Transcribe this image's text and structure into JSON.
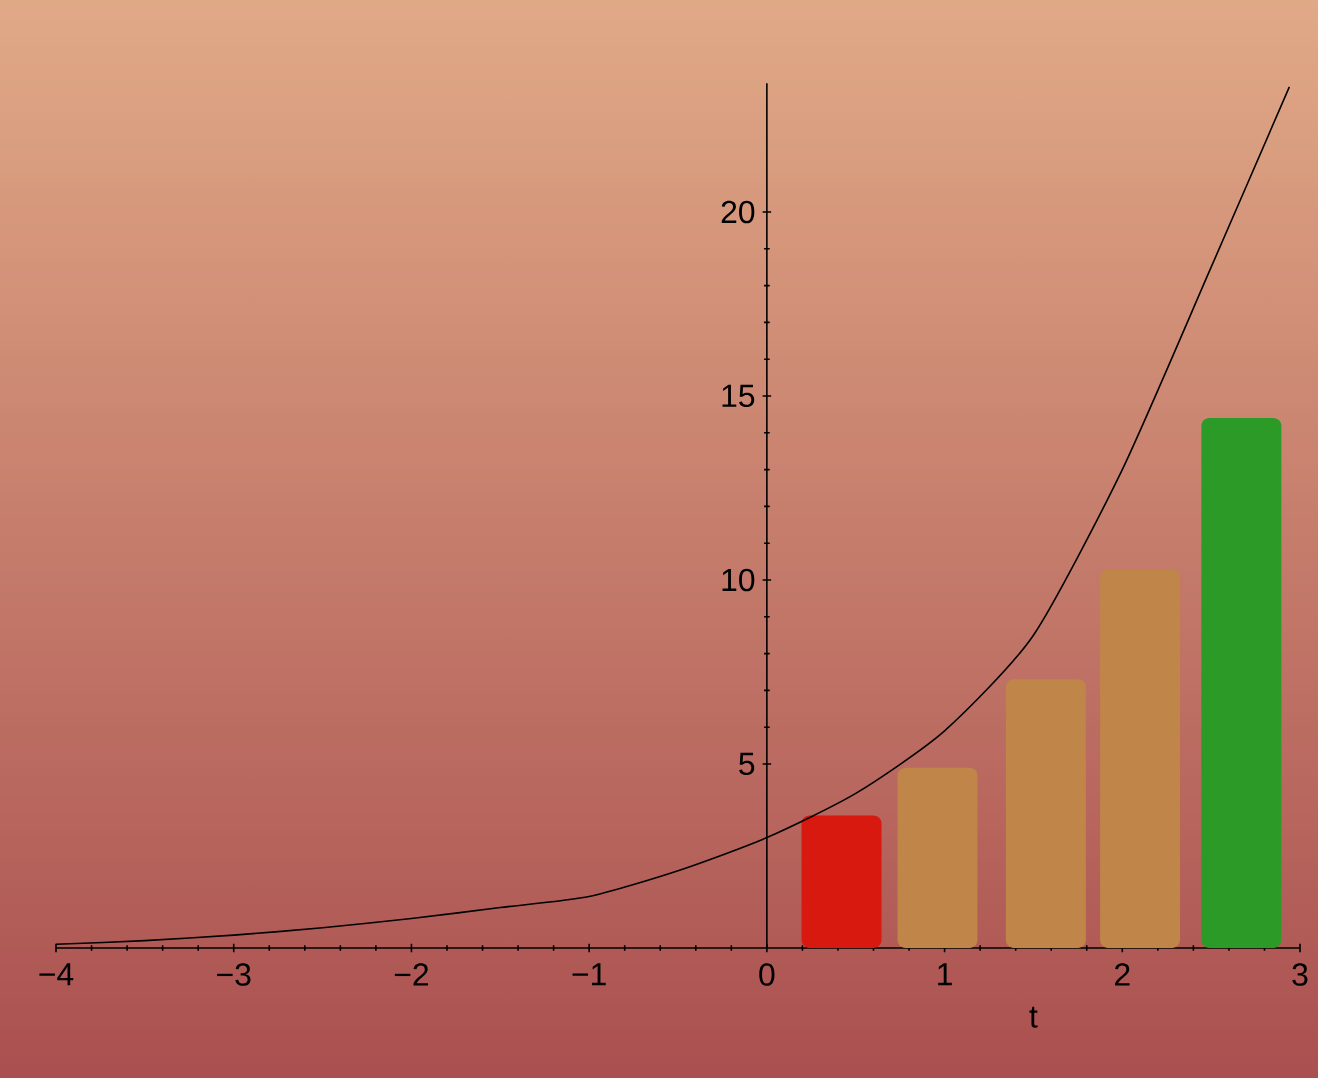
{
  "chart_data": {
    "type": "bar",
    "xlabel": "t",
    "xlim": [
      -4,
      3
    ],
    "ylim": [
      0,
      23.5
    ],
    "xticks": [
      {
        "value": -4,
        "label": "−4"
      },
      {
        "value": -3,
        "label": "−3"
      },
      {
        "value": -2,
        "label": "−2"
      },
      {
        "value": -1,
        "label": "−1"
      },
      0,
      1,
      2,
      3
    ],
    "yticks": [
      5,
      10,
      15,
      20
    ],
    "series": [
      {
        "x": [
          0.42,
          0.96,
          1.57,
          2.1,
          2.67
        ],
        "values": [
          3.6,
          4.9,
          7.3,
          10.3,
          14.4
        ],
        "colors": [
          "#d8190f",
          "#c08549",
          "#c08549",
          "#c08549",
          "#2c9a26"
        ]
      },
      {
        "type": "line",
        "color": "#000000",
        "x": [
          -4,
          -3.5,
          -3,
          -2.5,
          -2,
          -1.5,
          -1,
          -0.5,
          0,
          0.5,
          1,
          1.5,
          2,
          2.5,
          2.94
        ],
        "values": [
          0.1,
          0.2,
          0.35,
          0.55,
          0.8,
          1.1,
          1.4,
          2.1,
          3,
          4.2,
          5.9,
          8.5,
          13,
          18.5,
          23.4
        ]
      }
    ]
  }
}
